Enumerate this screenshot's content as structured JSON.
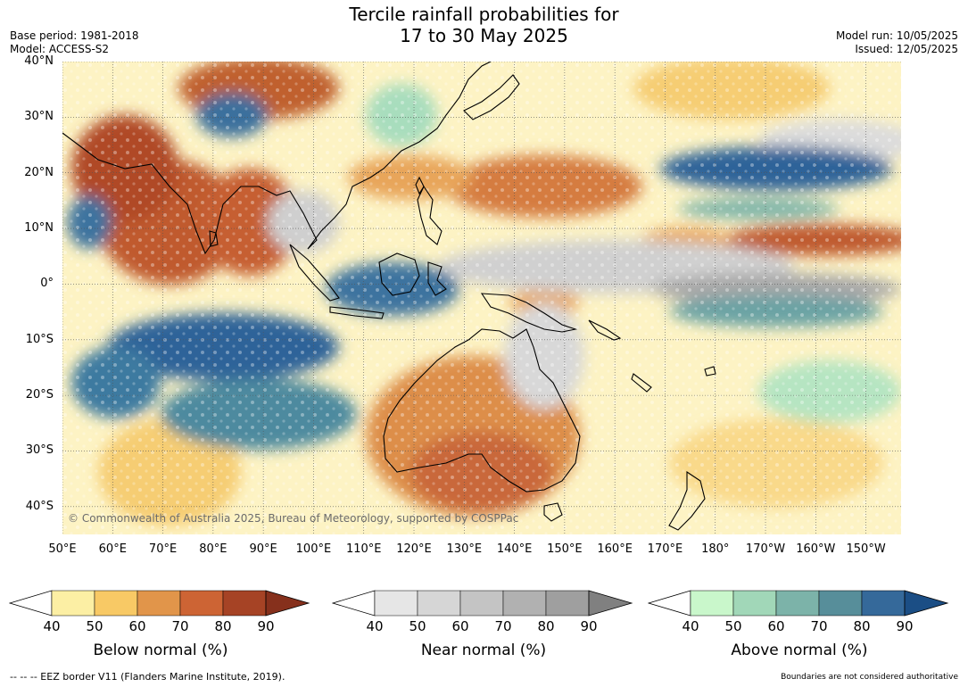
{
  "header": {
    "title_line1": "Tercile rainfall probabilities for",
    "title_line2": "17 to 30 May 2025",
    "base_period": "Base period: 1981-2018",
    "model": "Model: ACCESS-S2",
    "model_run": "Model run: 10/05/2025",
    "issued": "Issued: 12/05/2025"
  },
  "map": {
    "lat_labels": [
      "40°N",
      "30°N",
      "20°N",
      "10°N",
      "0°",
      "10°S",
      "20°S",
      "30°S",
      "40°S"
    ],
    "lon_labels": [
      "50°E",
      "60°E",
      "70°E",
      "80°E",
      "90°E",
      "100°E",
      "110°E",
      "120°E",
      "130°E",
      "140°E",
      "150°E",
      "160°E",
      "170°E",
      "180°",
      "170°W",
      "160°W",
      "150°W"
    ],
    "copyright": "© Commonwealth of Australia 2025, Bureau of Meteorology, supported by COSPPac",
    "extent": {
      "lon": [
        50,
        217
      ],
      "lat": [
        -45,
        40
      ]
    },
    "colors": {
      "below": [
        "#fcefa4",
        "#f8c965",
        "#e1954a",
        "#cd6434",
        "#a64325",
        "#86301c"
      ],
      "near": [
        "#e6e6e6",
        "#d6d6d6",
        "#c4c4c4",
        "#b1b1b1",
        "#9f9f9f",
        "#808080"
      ],
      "above": [
        "#c9f7cb",
        "#a1d7b8",
        "#7cb3a9",
        "#578e9a",
        "#35699a",
        "#1b4e85"
      ]
    }
  },
  "legend": {
    "ticks": [
      "40",
      "50",
      "60",
      "70",
      "80",
      "90"
    ],
    "below_title": "Below normal (%)",
    "near_title": "Near normal (%)",
    "above_title": "Above normal (%)"
  },
  "footer": {
    "eez_note": "--  --  -- EEZ border V11 (Flanders Marine Institute, 2019).",
    "boundaries_note": "Boundaries are not considered authoritative"
  }
}
